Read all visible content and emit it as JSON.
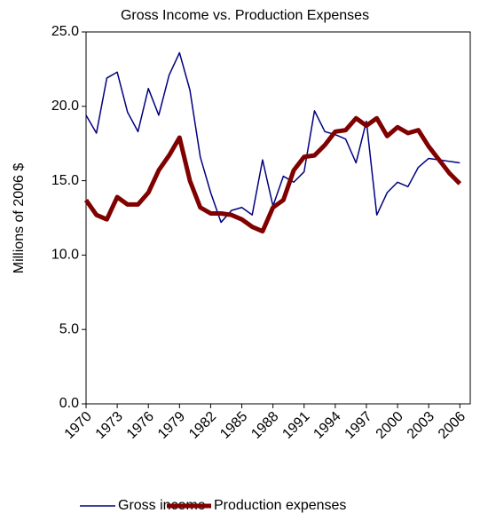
{
  "chart_data": {
    "type": "line",
    "title": "Gross Income vs. Production Expenses",
    "y_label": "Millions of 2006 $",
    "x": [
      1970,
      1971,
      1972,
      1973,
      1974,
      1975,
      1976,
      1977,
      1978,
      1979,
      1980,
      1981,
      1982,
      1983,
      1984,
      1985,
      1986,
      1987,
      1988,
      1989,
      1990,
      1991,
      1992,
      1993,
      1994,
      1995,
      1996,
      1997,
      1998,
      1999,
      2000,
      2001,
      2002,
      2003,
      2004,
      2005,
      2006
    ],
    "series": [
      {
        "name": "Gross income",
        "color": "#000080",
        "width": 1.5,
        "values": [
          19.4,
          18.2,
          21.9,
          22.3,
          19.6,
          18.3,
          21.2,
          19.4,
          22.1,
          23.6,
          21.1,
          16.6,
          14.2,
          12.2,
          13.0,
          13.2,
          12.7,
          16.4,
          13.3,
          15.3,
          14.9,
          15.6,
          19.7,
          18.3,
          18.1,
          17.8,
          16.2,
          19.0,
          12.7,
          14.2,
          14.9,
          14.6,
          15.9,
          16.5,
          16.4,
          16.3,
          16.2
        ]
      },
      {
        "name": "Production expenses",
        "color": "#800000",
        "width": 5,
        "values": [
          13.7,
          12.7,
          12.4,
          13.9,
          13.4,
          13.4,
          14.2,
          15.7,
          16.7,
          17.9,
          15.0,
          13.2,
          12.8,
          12.8,
          12.7,
          12.4,
          11.9,
          11.6,
          13.2,
          13.7,
          15.7,
          16.6,
          16.7,
          17.4,
          18.3,
          18.4,
          19.2,
          18.7,
          19.2,
          18.0,
          18.6,
          18.2,
          18.4,
          17.3,
          16.4,
          15.5,
          14.8
        ]
      }
    ],
    "xlim": [
      1970,
      2007
    ],
    "xticks": [
      1970,
      1973,
      1976,
      1979,
      1982,
      1985,
      1988,
      1991,
      1994,
      1997,
      2000,
      2003,
      2006
    ],
    "ylim": [
      0,
      25
    ],
    "yticks": [
      {
        "value": 0,
        "label": "0.0"
      },
      {
        "value": 5,
        "label": "5.0"
      },
      {
        "value": 10,
        "label": "10.0"
      },
      {
        "value": 15,
        "label": "15.0"
      },
      {
        "value": 20,
        "label": "20.0"
      },
      {
        "value": 25,
        "label": "25.0"
      }
    ],
    "grid": false,
    "legend": "bottom"
  }
}
